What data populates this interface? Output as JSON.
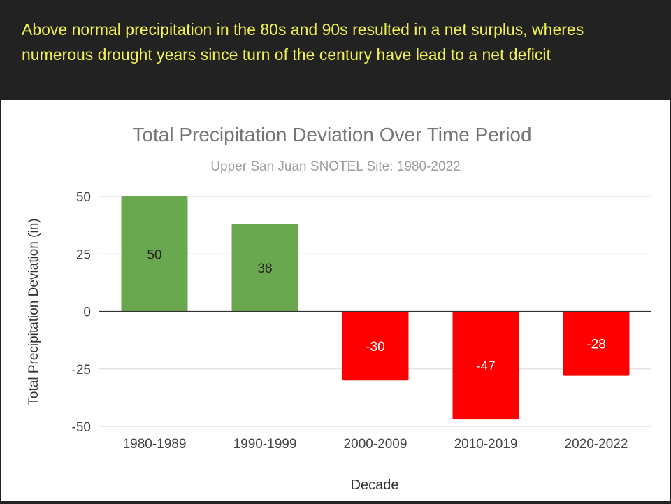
{
  "caption": "Above normal precipitation in the 80s and 90s resulted in a net surplus, wheres numerous drought years since turn of the century have lead to a net deficit",
  "colors": {
    "positive": "#6aa84f",
    "negative": "#ff0000",
    "caption_text": "#f0f050",
    "background": "#222222"
  },
  "chart_data": {
    "type": "bar",
    "title": "Total Precipitation Deviation Over Time Period",
    "subtitle": "Upper San Juan SNOTEL Site: 1980-2022",
    "xlabel": "Decade",
    "ylabel": "Total Precipitation Deviation (in)",
    "categories": [
      "1980-1989",
      "1990-1999",
      "2000-2009",
      "2010-2019",
      "2020-2022"
    ],
    "values": [
      50,
      38,
      -30,
      -47,
      -28
    ],
    "data_labels": [
      "50",
      "38",
      "-30",
      "-47",
      "-28"
    ],
    "yticks": [
      50,
      25,
      0,
      -25,
      -50
    ],
    "ytick_labels": [
      "50",
      "25",
      "0",
      "-25",
      "-50"
    ],
    "ylim": [
      -50,
      50
    ],
    "grid": true,
    "legend": "none"
  }
}
